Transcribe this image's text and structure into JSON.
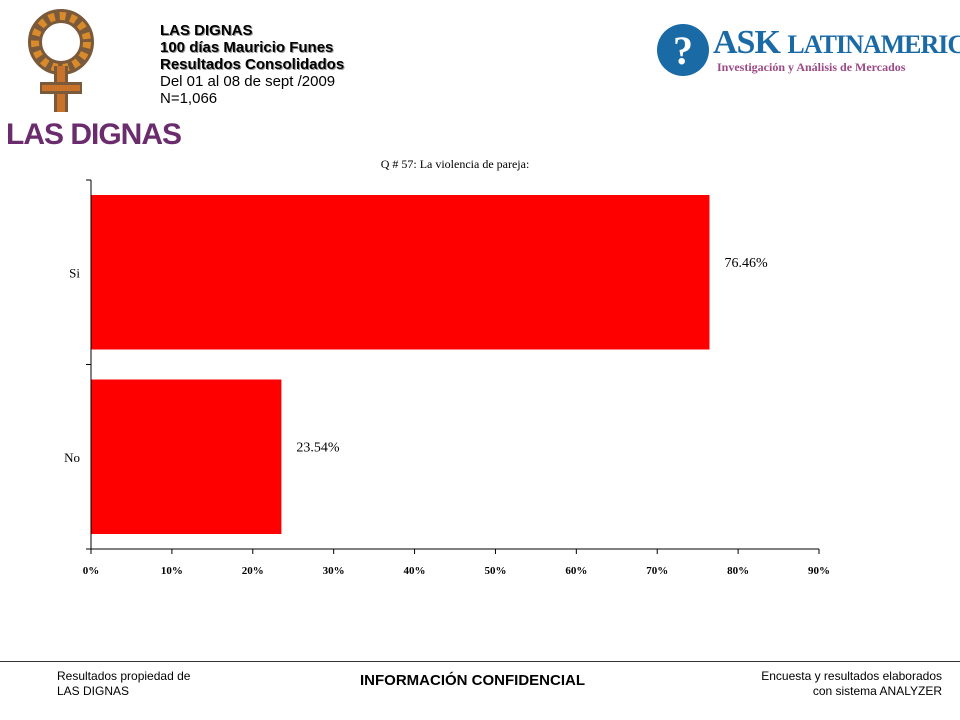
{
  "brand": {
    "left_logo_text": "LAS DIGNAS",
    "right_logo_main_a": "ASK",
    "right_logo_main_b": "LATINAMERICA",
    "right_logo_sub": "Investigación y Análisis de Mercados",
    "accent_purple": "#6b2c6e",
    "accent_blue": "#1a6aa6",
    "bar_color": "#ff0000"
  },
  "header": {
    "line1": "LAS DIGNAS",
    "line2": "100 días Mauricio Funes",
    "line3": "Resultados Consolidados",
    "line4": "Del 01 al 08 de sept /2009",
    "line5": "N=1,066"
  },
  "chart_data": {
    "type": "bar",
    "orientation": "horizontal",
    "title": "Q # 57: La violencia de pareja:",
    "categories": [
      "Si",
      "No"
    ],
    "values": [
      76.46,
      23.54
    ],
    "value_labels": [
      "76.46%",
      "23.54%"
    ],
    "xlim": [
      0,
      90
    ],
    "xticks": [
      "0%",
      "10%",
      "20%",
      "30%",
      "40%",
      "50%",
      "60%",
      "70%",
      "80%",
      "90%"
    ],
    "grid": false,
    "legend": "none"
  },
  "footer": {
    "left_line1": "Resultados propiedad de",
    "left_line2": "LAS DIGNAS",
    "center": "INFORMACIÓN CONFIDENCIAL",
    "right_line1": "Encuesta y resultados elaborados",
    "right_line2": "con sistema ANALYZER"
  }
}
